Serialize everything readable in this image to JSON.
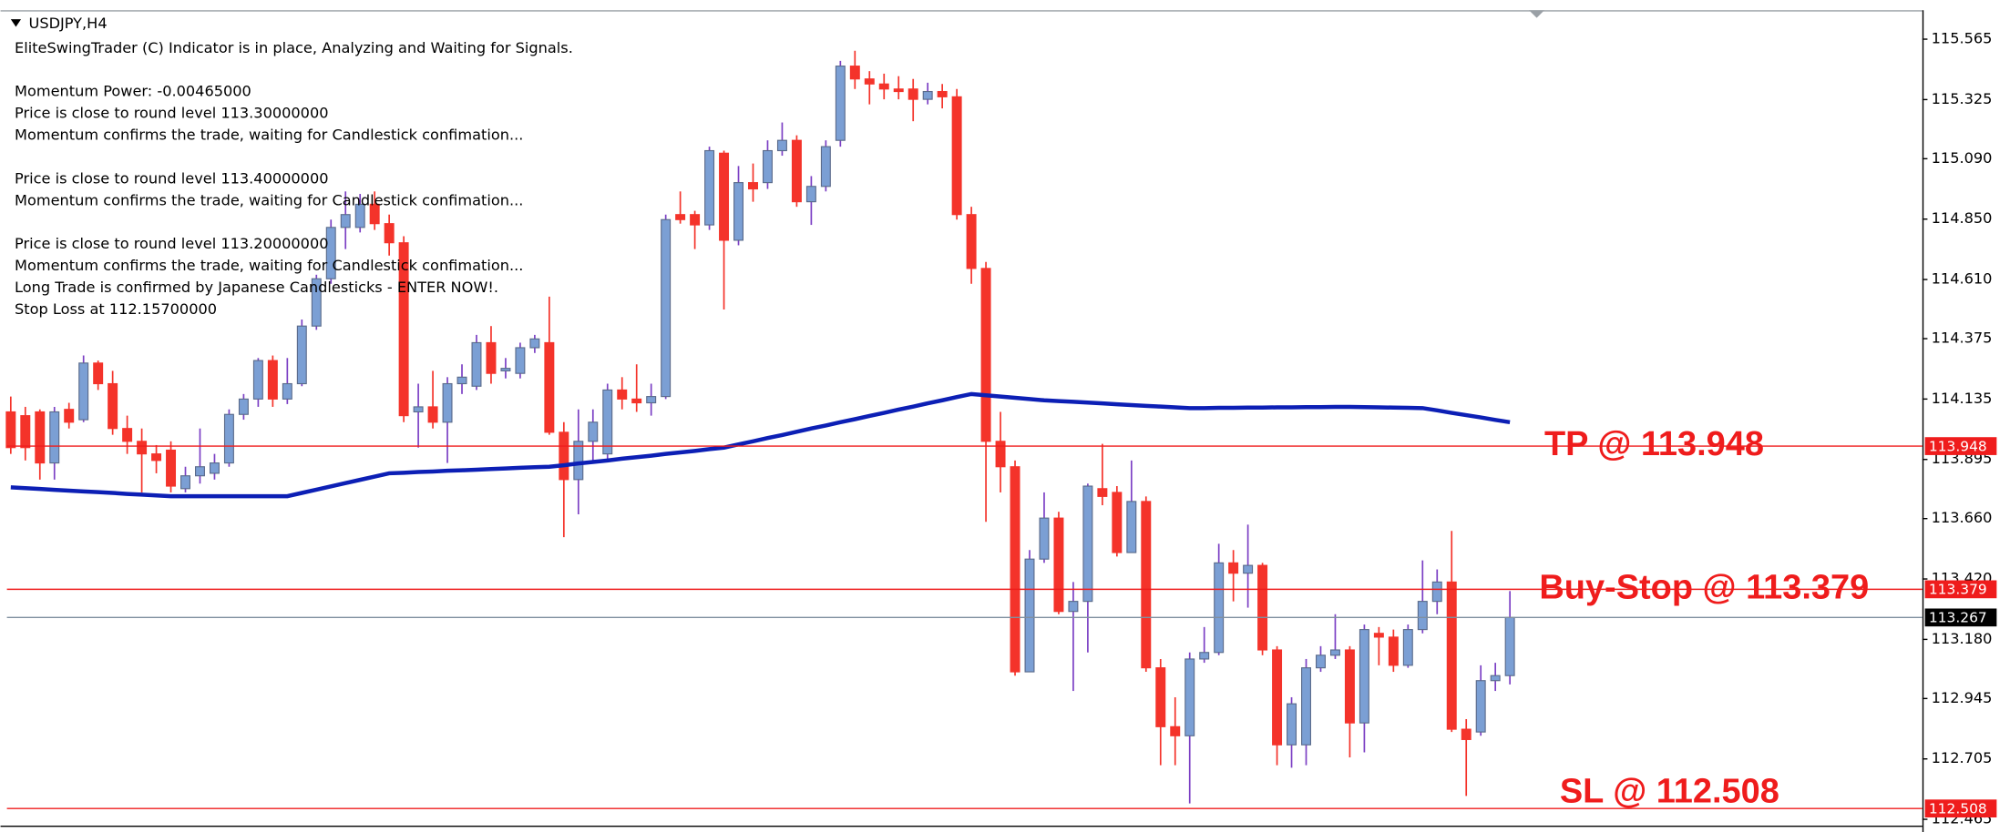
{
  "chart_data": {
    "type": "candlestick",
    "title": "USDJPY,H4",
    "info": [
      [
        "EliteSwingTrader (C) Indicator is in place, Analyzing and Waiting for Signals."
      ],
      [
        "Momentum Power: -0.00465000",
        "Price is close to round level 113.30000000",
        "Momentum confirms the trade, waiting for Candlestick confimation..."
      ],
      [
        "Price is close to round level 113.40000000",
        "Momentum confirms the trade, waiting for Candlestick confimation..."
      ],
      [
        "Price is close to round level 113.20000000",
        "Momentum confirms the trade, waiting for Candlestick confimation...",
        "Long Trade is confirmed by Japanese Candlesticks - ENTER NOW!.",
        "Stop Loss at 112.15700000"
      ]
    ],
    "up_color": "#7b9fd4",
    "down_color": "#f4332a",
    "up_wick_color": "#7b3fc4",
    "open": [
      114.084,
      114.069,
      114.084,
      113.881,
      114.094,
      114.053,
      114.278,
      114.196,
      114.018,
      113.967,
      113.917,
      113.932,
      113.779,
      113.83,
      113.84,
      113.881,
      114.074,
      114.135,
      114.288,
      114.135,
      114.196,
      114.425,
      114.613,
      114.817,
      114.817,
      114.909,
      114.832,
      114.756,
      114.084,
      114.104,
      114.043,
      114.196,
      114.186,
      114.359,
      114.247,
      114.237,
      114.339,
      114.359,
      114.003,
      113.815,
      113.967,
      113.917,
      114.171,
      114.135,
      114.12,
      114.145,
      114.868,
      114.868,
      114.827,
      115.112,
      114.766,
      114.995,
      114.995,
      115.122,
      115.163,
      114.919,
      114.98,
      115.163,
      115.458,
      115.407,
      115.387,
      115.367,
      115.367,
      115.326,
      115.357,
      115.336,
      114.868,
      114.654,
      113.967,
      113.866,
      113.051,
      113.499,
      113.662,
      113.291,
      113.331,
      113.779,
      113.764,
      113.525,
      113.728,
      113.067,
      112.833,
      112.797,
      113.102,
      113.128,
      113.484,
      113.443,
      113.474,
      113.138,
      112.761,
      112.761,
      113.067,
      113.117,
      113.138,
      112.848,
      113.204,
      113.189,
      113.077,
      113.219,
      113.331,
      113.408,
      112.823,
      112.812,
      113.016,
      113.036
    ],
    "high": [
      114.145,
      114.104,
      114.094,
      114.104,
      114.12,
      114.308,
      114.288,
      114.247,
      114.069,
      114.018,
      113.952,
      113.967,
      113.866,
      114.018,
      113.917,
      114.094,
      114.155,
      114.298,
      114.308,
      114.298,
      114.451,
      114.629,
      114.848,
      114.96,
      114.95,
      114.96,
      114.868,
      114.782,
      114.196,
      114.247,
      114.222,
      114.273,
      114.39,
      114.425,
      114.298,
      114.359,
      114.39,
      114.542,
      114.043,
      114.094,
      114.094,
      114.196,
      114.222,
      114.273,
      114.196,
      114.868,
      114.96,
      114.883,
      115.138,
      115.122,
      115.061,
      115.071,
      115.163,
      115.234,
      115.183,
      115.021,
      115.163,
      115.479,
      115.519,
      115.438,
      115.428,
      115.418,
      115.407,
      115.392,
      115.387,
      115.367,
      114.899,
      114.68,
      114.084,
      113.891,
      113.535,
      113.764,
      113.687,
      113.408,
      113.799,
      113.957,
      113.789,
      113.891,
      113.748,
      113.102,
      112.95,
      113.128,
      113.229,
      113.56,
      113.535,
      113.636,
      113.484,
      113.153,
      112.95,
      113.102,
      113.153,
      113.28,
      113.153,
      113.239,
      113.229,
      113.219,
      113.239,
      113.494,
      113.458,
      113.611,
      112.863,
      113.077,
      113.087,
      113.372
    ],
    "low": [
      113.917,
      113.891,
      113.815,
      113.815,
      114.018,
      114.043,
      114.171,
      113.993,
      113.917,
      113.764,
      113.84,
      113.764,
      113.764,
      113.799,
      113.815,
      113.866,
      114.053,
      114.104,
      114.104,
      114.115,
      114.186,
      114.41,
      114.593,
      114.731,
      114.797,
      114.807,
      114.705,
      114.043,
      113.942,
      114.018,
      113.881,
      114.155,
      114.171,
      114.196,
      114.217,
      114.217,
      114.318,
      113.993,
      113.586,
      113.677,
      113.881,
      113.891,
      114.094,
      114.084,
      114.069,
      114.135,
      114.832,
      114.731,
      114.807,
      114.491,
      114.746,
      114.919,
      114.97,
      115.102,
      114.899,
      114.827,
      114.96,
      115.138,
      115.367,
      115.306,
      115.326,
      115.326,
      115.239,
      115.306,
      115.29,
      114.848,
      114.593,
      113.647,
      113.764,
      113.036,
      113.051,
      113.484,
      113.28,
      112.975,
      113.128,
      113.713,
      113.509,
      113.525,
      113.051,
      112.68,
      112.68,
      112.528,
      113.087,
      113.117,
      113.331,
      113.306,
      113.117,
      112.68,
      112.67,
      112.68,
      113.051,
      113.102,
      112.711,
      112.731,
      113.077,
      113.051,
      113.067,
      113.204,
      113.28,
      112.812,
      112.558,
      112.797,
      112.975,
      113.001
    ],
    "close": [
      113.942,
      113.942,
      113.881,
      114.084,
      114.043,
      114.278,
      114.196,
      114.018,
      113.967,
      113.917,
      113.891,
      113.789,
      113.83,
      113.866,
      113.881,
      114.074,
      114.135,
      114.288,
      114.135,
      114.196,
      114.425,
      114.613,
      114.817,
      114.868,
      114.909,
      114.832,
      114.756,
      114.069,
      114.104,
      114.043,
      114.196,
      114.222,
      114.359,
      114.237,
      114.257,
      114.339,
      114.374,
      114.003,
      113.815,
      113.967,
      114.043,
      114.171,
      114.135,
      114.12,
      114.145,
      114.848,
      114.848,
      114.827,
      115.122,
      114.766,
      114.995,
      114.97,
      115.122,
      115.163,
      114.919,
      114.98,
      115.138,
      115.458,
      115.407,
      115.387,
      115.367,
      115.357,
      115.326,
      115.357,
      115.336,
      114.868,
      114.654,
      113.967,
      113.866,
      113.051,
      113.499,
      113.662,
      113.291,
      113.331,
      113.789,
      113.748,
      113.525,
      113.728,
      113.067,
      112.833,
      112.797,
      113.102,
      113.128,
      113.484,
      113.443,
      113.474,
      113.138,
      112.761,
      112.924,
      113.067,
      113.117,
      113.138,
      112.848,
      113.219,
      113.189,
      113.077,
      113.219,
      113.331,
      113.408,
      112.823,
      112.782,
      113.016,
      113.036,
      113.267
    ],
    "ma": {
      "color": "#0c1fb5",
      "values": [
        113.784,
        113.781,
        113.778,
        113.774,
        113.771,
        113.768,
        113.765,
        113.762,
        113.758,
        113.755,
        113.752,
        113.749,
        113.749,
        113.749,
        113.749,
        113.749,
        113.749,
        113.749,
        113.749,
        113.749,
        113.762,
        113.775,
        113.788,
        113.801,
        113.814,
        113.827,
        113.84,
        113.842,
        113.845,
        113.847,
        113.85,
        113.852,
        113.854,
        113.857,
        113.859,
        113.862,
        113.864,
        113.866,
        113.872,
        113.879,
        113.885,
        113.891,
        113.898,
        113.904,
        113.91,
        113.917,
        113.923,
        113.929,
        113.936,
        113.942,
        113.955,
        113.967,
        113.98,
        113.992,
        114.005,
        114.018,
        114.03,
        114.043,
        114.055,
        114.068,
        114.08,
        114.093,
        114.105,
        114.118,
        114.13,
        114.143,
        114.155,
        114.15,
        114.145,
        114.14,
        114.135,
        114.13,
        114.127,
        114.124,
        114.121,
        114.118,
        114.114,
        114.111,
        114.108,
        114.105,
        114.102,
        114.099,
        114.099,
        114.1,
        114.1,
        114.101,
        114.101,
        114.102,
        114.102,
        114.103,
        114.103,
        114.104,
        114.104,
        114.103,
        114.102,
        114.101,
        114.1,
        114.099,
        114.09,
        114.08,
        114.071,
        114.062,
        114.052,
        114.043
      ]
    },
    "levels": [
      {
        "value": 113.948,
        "color": "#ef1c1c",
        "label": "TP @ 113.948"
      },
      {
        "value": 113.379,
        "color": "#ef1c1c",
        "label": "Buy-Stop @ 113.379"
      },
      {
        "value": 112.508,
        "color": "#ef1c1c",
        "label": "SL @ 112.508"
      },
      {
        "value": 113.267,
        "color": "#7f8f9f"
      }
    ],
    "ylim": [
      112.44,
      115.68
    ],
    "yticks": [
      115.565,
      115.325,
      {
        "value": 115.09,
        "label": "115.090"
      },
      {
        "value": 114.85,
        "label": "114.850"
      },
      {
        "value": 114.61,
        "label": "114.610"
      },
      114.375,
      114.135,
      113.895,
      {
        "value": 113.66,
        "label": "113.660"
      },
      {
        "value": 113.42,
        "label": "113.420"
      },
      {
        "value": 113.18,
        "label": "113.180"
      },
      112.945,
      112.705,
      112.465
    ]
  }
}
